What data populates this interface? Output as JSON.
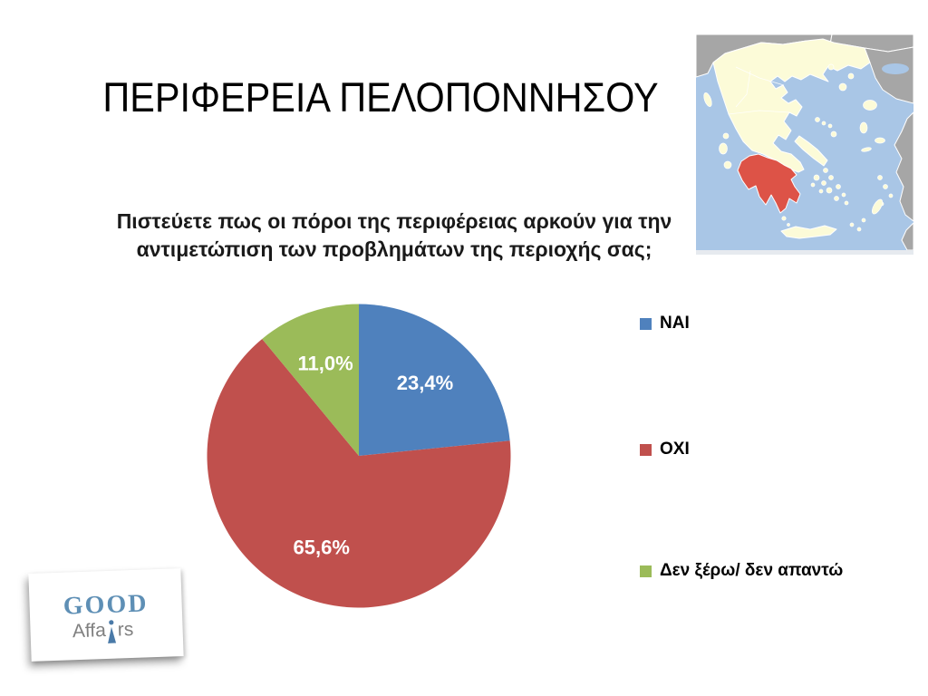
{
  "slide": {
    "title": "ΠΕΡΙΦΕΡΕΙΑ ΠΕΛΟΠΟΝΝΗΣΟΥ",
    "question_line1": "Πιστεύετε πως οι πόροι της περιφέρειας αρκούν για την",
    "question_line2": "αντιμετώπιση των προβλημάτων της περιοχής σας;"
  },
  "chart_data": {
    "type": "pie",
    "title": "Πιστεύετε πως οι πόροι της περιφέρειας αρκούν για την αντιμετώπιση των προβλημάτων της περιοχής σας;",
    "categories": [
      "ΝΑΙ",
      "ΟΧΙ",
      "Δεν ξέρω/ δεν απαντώ"
    ],
    "values": [
      23.4,
      65.6,
      11.0
    ],
    "data_labels": [
      "23,4%",
      "65,6%",
      "11,0%"
    ],
    "colors": [
      "#4F81BD",
      "#C0504D",
      "#9BBB59"
    ],
    "start_angle_deg": 0,
    "direction": "clockwise",
    "legend_position": "right",
    "data_label_color": "#FFFFFF"
  },
  "legend": {
    "items": [
      {
        "label": "ΝΑΙ",
        "color": "#4F81BD"
      },
      {
        "label": "ΟΧΙ",
        "color": "#C0504D"
      },
      {
        "label": "Δεν ξέρω/ δεν απαντώ",
        "color": "#9BBB59"
      }
    ]
  },
  "map": {
    "colors": {
      "sea": "#A9C6E6",
      "greece": "#FCFBD8",
      "neighbors": "#A6A6A6",
      "highlight": "#DD5347",
      "bottom_strip": "#E6EAEF"
    }
  },
  "logo": {
    "word1": "GOOD",
    "word1_color": "#5E8FB5",
    "word2_prefix": "Affa",
    "word2_suffix": "rs",
    "word2_color": "#808080",
    "icon_color": "#4A7AA8"
  }
}
